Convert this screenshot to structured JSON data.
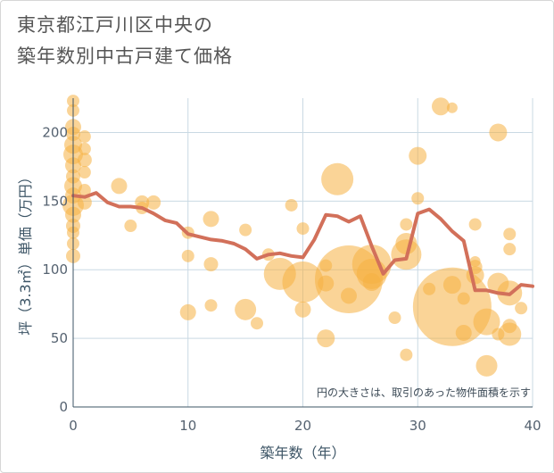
{
  "title_lines": [
    "東京都江戸川区中央の",
    "築年数別中古戸建て価格"
  ],
  "colors": {
    "bubble": "#f5b042",
    "line": "#d2705a",
    "grid": "#c9d9e3",
    "axis": "#3d5566"
  },
  "chart_data": {
    "type": "scatter",
    "xlabel": "築年数（年）",
    "ylabel": "坪（3.3㎡）単価（万円）",
    "xlim": [
      0,
      40
    ],
    "ylim": [
      0,
      225
    ],
    "xticks": [
      0,
      10,
      20,
      30,
      40
    ],
    "yticks": [
      0,
      50,
      100,
      150,
      200
    ],
    "grid": true,
    "annotation": "円の大きさは、取引のあった物件面積を示す",
    "series": [
      {
        "type": "line",
        "values": [
          [
            0,
            154
          ],
          [
            1,
            153
          ],
          [
            2,
            156
          ],
          [
            3,
            149
          ],
          [
            4,
            146
          ],
          [
            5,
            146
          ],
          [
            6,
            145
          ],
          [
            7,
            141
          ],
          [
            8,
            136
          ],
          [
            9,
            134
          ],
          [
            10,
            126
          ],
          [
            11,
            124
          ],
          [
            12,
            122
          ],
          [
            13,
            121
          ],
          [
            14,
            119
          ],
          [
            15,
            115
          ],
          [
            16,
            108
          ],
          [
            17,
            111
          ],
          [
            18,
            112
          ],
          [
            19,
            110
          ],
          [
            20,
            109
          ],
          [
            21,
            122
          ],
          [
            22,
            140
          ],
          [
            23,
            139
          ],
          [
            24,
            135
          ],
          [
            25,
            139
          ],
          [
            26,
            117
          ],
          [
            27,
            97
          ],
          [
            28,
            107
          ],
          [
            29,
            108
          ],
          [
            30,
            141
          ],
          [
            31,
            144
          ],
          [
            32,
            137
          ],
          [
            33,
            128
          ],
          [
            34,
            121
          ],
          [
            35,
            85
          ],
          [
            36,
            85
          ],
          [
            37,
            83
          ],
          [
            38,
            82
          ],
          [
            39,
            89
          ],
          [
            40,
            88
          ]
        ]
      },
      {
        "type": "bubble",
        "points": [
          [
            0,
            223,
            7
          ],
          [
            0,
            216,
            7
          ],
          [
            0,
            204,
            9
          ],
          [
            0,
            199,
            8
          ],
          [
            0,
            191,
            10
          ],
          [
            0,
            184,
            11
          ],
          [
            0,
            176,
            9
          ],
          [
            0,
            168,
            8
          ],
          [
            0,
            161,
            10
          ],
          [
            0,
            154,
            9
          ],
          [
            0,
            147,
            12
          ],
          [
            0,
            140,
            9
          ],
          [
            0,
            132,
            8
          ],
          [
            0,
            127,
            7
          ],
          [
            0,
            119,
            7
          ],
          [
            0,
            110,
            8
          ],
          [
            1,
            197,
            7
          ],
          [
            1,
            188,
            7
          ],
          [
            1,
            180,
            8
          ],
          [
            1,
            171,
            7
          ],
          [
            1,
            158,
            7
          ],
          [
            1,
            149,
            8
          ],
          [
            4,
            161,
            9
          ],
          [
            5,
            132,
            7
          ],
          [
            6,
            149,
            8
          ],
          [
            6,
            145,
            7
          ],
          [
            7,
            149,
            8
          ],
          [
            10,
            127,
            7
          ],
          [
            10,
            110,
            7
          ],
          [
            10,
            69,
            9
          ],
          [
            12,
            137,
            9
          ],
          [
            12,
            104,
            8
          ],
          [
            12,
            74,
            7
          ],
          [
            15,
            129,
            7
          ],
          [
            15,
            71,
            12
          ],
          [
            16,
            61,
            7
          ],
          [
            17,
            111,
            7
          ],
          [
            18,
            97,
            18
          ],
          [
            19,
            147,
            7
          ],
          [
            20,
            130,
            7
          ],
          [
            20,
            71,
            9
          ],
          [
            20,
            91,
            23
          ],
          [
            22,
            103,
            7
          ],
          [
            22,
            90,
            9
          ],
          [
            22,
            50,
            10
          ],
          [
            23,
            166,
            18
          ],
          [
            24,
            93,
            38
          ],
          [
            24,
            81,
            9
          ],
          [
            26,
            104,
            22
          ],
          [
            26,
            97,
            17
          ],
          [
            26,
            91,
            10
          ],
          [
            28,
            65,
            7
          ],
          [
            29,
            133,
            7
          ],
          [
            29,
            38,
            7
          ],
          [
            29,
            111,
            17
          ],
          [
            29,
            119,
            12
          ],
          [
            30,
            152,
            7
          ],
          [
            30,
            183,
            10
          ],
          [
            31,
            86,
            7
          ],
          [
            32,
            219,
            10
          ],
          [
            33,
            218,
            6
          ],
          [
            33,
            73,
            44
          ],
          [
            33,
            89,
            10
          ],
          [
            34,
            79,
            7
          ],
          [
            34,
            54,
            9
          ],
          [
            35,
            133,
            7
          ],
          [
            35,
            102,
            8
          ],
          [
            35,
            96,
            10
          ],
          [
            35,
            106,
            6
          ],
          [
            36,
            62,
            15
          ],
          [
            36,
            30,
            12
          ],
          [
            37,
            200,
            10
          ],
          [
            37,
            90,
            12
          ],
          [
            37,
            53,
            7
          ],
          [
            38,
            126,
            7
          ],
          [
            38,
            115,
            7
          ],
          [
            38,
            59,
            8
          ],
          [
            38,
            53,
            13
          ],
          [
            38,
            83,
            14
          ],
          [
            39,
            72,
            7
          ]
        ]
      }
    ]
  }
}
